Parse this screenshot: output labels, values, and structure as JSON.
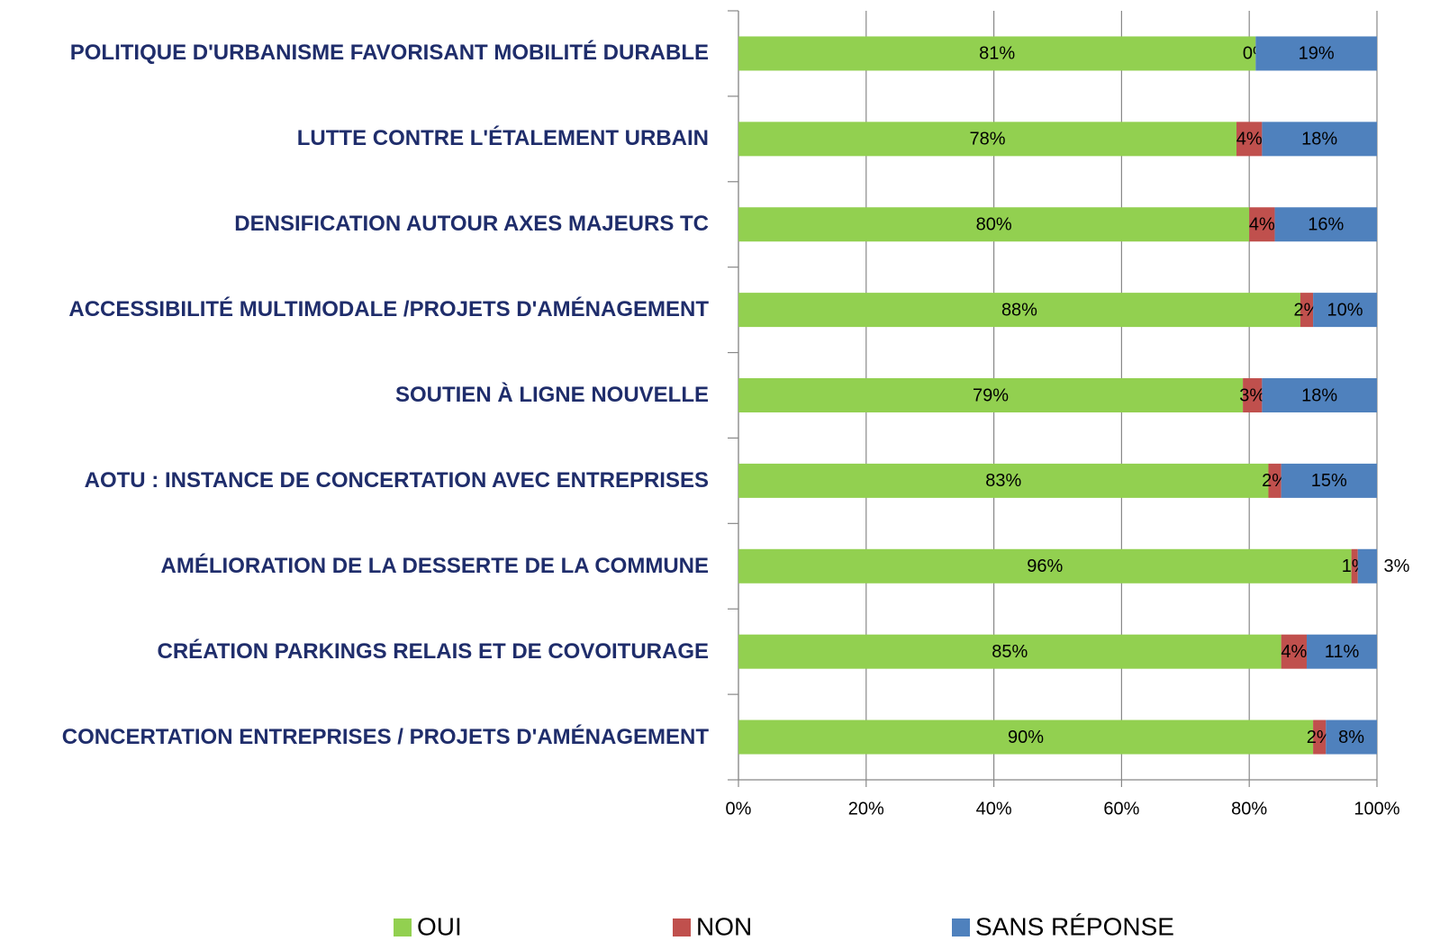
{
  "chart_data": {
    "type": "stacked-barh",
    "categories": [
      "POLITIQUE D'URBANISME FAVORISANT MOBILITÉ DURABLE",
      "LUTTE CONTRE L'ÉTALEMENT URBAIN",
      "DENSIFICATION AUTOUR AXES MAJEURS TC",
      "ACCESSIBILITÉ MULTIMODALE /PROJETS D'AMÉNAGEMENT",
      "SOUTIEN À LIGNE NOUVELLE",
      "AOTU : INSTANCE DE CONCERTATION AVEC ENTREPRISES",
      "AMÉLIORATION DE LA DESSERTE DE LA COMMUNE",
      "CRÉATION PARKINGS RELAIS ET DE COVOITURAGE",
      "CONCERTATION ENTREPRISES / PROJETS D'AMÉNAGEMENT"
    ],
    "series": [
      {
        "name": "OUI",
        "color": "#92d050",
        "values": [
          81,
          78,
          80,
          88,
          79,
          83,
          96,
          85,
          90
        ],
        "value_labels": [
          "81%",
          "78%",
          "80%",
          "88%",
          "79%",
          "83%",
          "96%",
          "85%",
          "90%"
        ]
      },
      {
        "name": "NON",
        "color": "#c0504d",
        "values": [
          0,
          4,
          4,
          2,
          3,
          2,
          1,
          4,
          2
        ],
        "value_labels": [
          "0%",
          "4%",
          "4%",
          "2%",
          "3%",
          "2%",
          "1%",
          "4%",
          "2%"
        ]
      },
      {
        "name": "SANS RÉPONSE",
        "color": "#4f81bd",
        "values": [
          19,
          18,
          16,
          10,
          18,
          15,
          3,
          11,
          8
        ],
        "value_labels": [
          "19%",
          "18%",
          "16%",
          "10%",
          "18%",
          "15%",
          "3%",
          "11%",
          "8%"
        ]
      }
    ],
    "xlim": [
      0,
      100
    ],
    "xticks": [
      {
        "value": 0,
        "label": "0%"
      },
      {
        "value": 20,
        "label": "20%"
      },
      {
        "value": 40,
        "label": "40%"
      },
      {
        "value": 60,
        "label": "60%"
      },
      {
        "value": 80,
        "label": "80%"
      },
      {
        "value": 100,
        "label": "100%"
      }
    ],
    "grid": true,
    "legend": "bottom"
  }
}
